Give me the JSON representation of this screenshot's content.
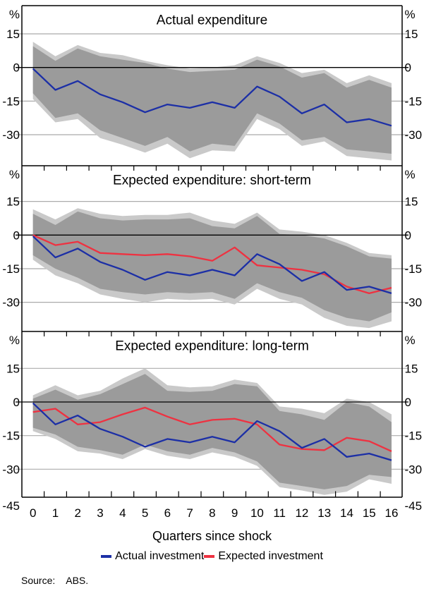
{
  "source": {
    "label": "Source:",
    "value": "ABS."
  },
  "chart_data": {
    "type": "line",
    "unit": "%",
    "xlabel": "Quarters since shock",
    "x": [
      0,
      1,
      2,
      3,
      4,
      5,
      6,
      7,
      8,
      9,
      10,
      11,
      12,
      13,
      14,
      15,
      16
    ],
    "yticks": [
      15,
      0,
      -15,
      -30
    ],
    "y_bottom_label": -45,
    "ylim": [
      -45,
      28
    ],
    "grid": "horizontal",
    "legend_position": "bottom",
    "colors": {
      "actual": "#1C2FA6",
      "expected": "#EE3241",
      "band_dark": "#9B9B9B",
      "band_light": "#C9C9C9",
      "gridline": "#ABABAB",
      "zero_line": "#000000",
      "frame": "#000000"
    },
    "legend": [
      {
        "label": "Actual investment",
        "color": "#1C2FA6"
      },
      {
        "label": "Expected investment",
        "color": "#EE3241"
      }
    ],
    "panels": [
      {
        "title": "Actual expenditure",
        "band_dark": {
          "upper": [
            9.5,
            3,
            8.5,
            5,
            3.5,
            2,
            -0.5,
            -2,
            -1.5,
            -1,
            3.5,
            0.5,
            -4.5,
            -2.5,
            -9,
            -5.5,
            -9
          ],
          "lower": [
            -11.5,
            -22.5,
            -20.5,
            -28,
            -31.5,
            -35,
            -31,
            -37.5,
            -34,
            -35,
            -20.5,
            -25,
            -32.5,
            -31,
            -36.5,
            -37.5,
            -38.5
          ]
        },
        "band_light": {
          "upper": [
            11.5,
            5,
            10,
            6.5,
            5.5,
            3,
            1,
            -0.5,
            0,
            1,
            5,
            2,
            -2.5,
            -1,
            -7,
            -3.5,
            -7
          ],
          "lower": [
            -14,
            -24.5,
            -23,
            -31.5,
            -34.5,
            -38,
            -34,
            -40.5,
            -37,
            -37.5,
            -23,
            -27.5,
            -35,
            -33,
            -39.5,
            -40.5,
            -41.5
          ]
        },
        "series": [
          {
            "name": "Actual investment",
            "color": "#1C2FA6",
            "values": [
              -0.5,
              -10,
              -6,
              -12,
              -15.5,
              -20,
              -16.5,
              -18,
              -15.5,
              -18,
              -8.5,
              -13,
              -20.5,
              -16.5,
              -24.5,
              -23,
              -26
            ]
          }
        ]
      },
      {
        "title": "Expected expenditure: short-term",
        "band_dark": {
          "upper": [
            9.5,
            4.5,
            10.5,
            7.5,
            6.5,
            7,
            7,
            7.5,
            4,
            3,
            8.5,
            0.5,
            0,
            -1.5,
            -5,
            -9.5,
            -10.5
          ],
          "lower": [
            -9,
            -15,
            -19,
            -24,
            -25.5,
            -26.5,
            -25.5,
            -26,
            -25.5,
            -28.5,
            -21.5,
            -25.5,
            -28,
            -33.5,
            -37,
            -38.5,
            -34.5
          ]
        },
        "band_light": {
          "upper": [
            11.5,
            7,
            12,
            9.5,
            8.5,
            9,
            9,
            10,
            6.5,
            5,
            10,
            2.5,
            1.5,
            0,
            -3.5,
            -8,
            -9
          ],
          "lower": [
            -11,
            -18,
            -21.5,
            -26.5,
            -28.5,
            -30,
            -28.5,
            -29,
            -28.5,
            -31,
            -24,
            -28.5,
            -31,
            -37,
            -40.5,
            -41.5,
            -38.5
          ]
        },
        "series": [
          {
            "name": "Actual investment",
            "color": "#1C2FA6",
            "values": [
              -0.5,
              -10,
              -6,
              -12,
              -15.5,
              -20,
              -16.5,
              -18,
              -15.5,
              -18,
              -8.5,
              -13,
              -20.5,
              -16.5,
              -24.5,
              -23,
              -26
            ]
          },
          {
            "name": "Expected investment",
            "color": "#EE3241",
            "values": [
              0,
              -4.5,
              -3,
              -8,
              -8.5,
              -9,
              -8.5,
              -9.5,
              -11.5,
              -5.5,
              -13.5,
              -14.5,
              -15.5,
              -17.5,
              -23,
              -26,
              -23.5
            ]
          }
        ]
      },
      {
        "title": "Expected expenditure: long-term",
        "band_dark": {
          "upper": [
            1.5,
            5.5,
            1,
            3.5,
            8,
            12.5,
            5,
            4.5,
            5,
            8,
            7,
            -4,
            -5.5,
            -8,
            0,
            -2,
            -9
          ],
          "lower": [
            -11.5,
            -14.5,
            -20,
            -21.5,
            -23.5,
            -19,
            -22,
            -23.5,
            -20.5,
            -22.5,
            -26.5,
            -36,
            -37.5,
            -39,
            -37.5,
            -32.5,
            -33.5
          ]
        },
        "band_light": {
          "upper": [
            3,
            7.5,
            3,
            5,
            10.5,
            15,
            7.5,
            6.5,
            7,
            10,
            8.5,
            -2,
            -3,
            -5,
            1.5,
            0,
            -5.5
          ],
          "lower": [
            -13,
            -16.5,
            -22,
            -23,
            -25.5,
            -21,
            -24,
            -25.5,
            -22.5,
            -24.5,
            -28.5,
            -38,
            -39.5,
            -41.5,
            -40,
            -34.5,
            -36.5
          ]
        },
        "series": [
          {
            "name": "Actual investment",
            "color": "#1C2FA6",
            "values": [
              -0.5,
              -10,
              -6,
              -12,
              -15.5,
              -20,
              -16.5,
              -18,
              -15.5,
              -18,
              -8.5,
              -13,
              -20.5,
              -16.5,
              -24.5,
              -23,
              -26
            ]
          },
          {
            "name": "Expected investment",
            "color": "#EE3241",
            "values": [
              -4.5,
              -3,
              -10,
              -9,
              -5.5,
              -2.5,
              -6.5,
              -10,
              -8,
              -7.5,
              -10,
              -19,
              -21,
              -21.5,
              -16,
              -17.5,
              -22
            ]
          }
        ]
      }
    ]
  }
}
